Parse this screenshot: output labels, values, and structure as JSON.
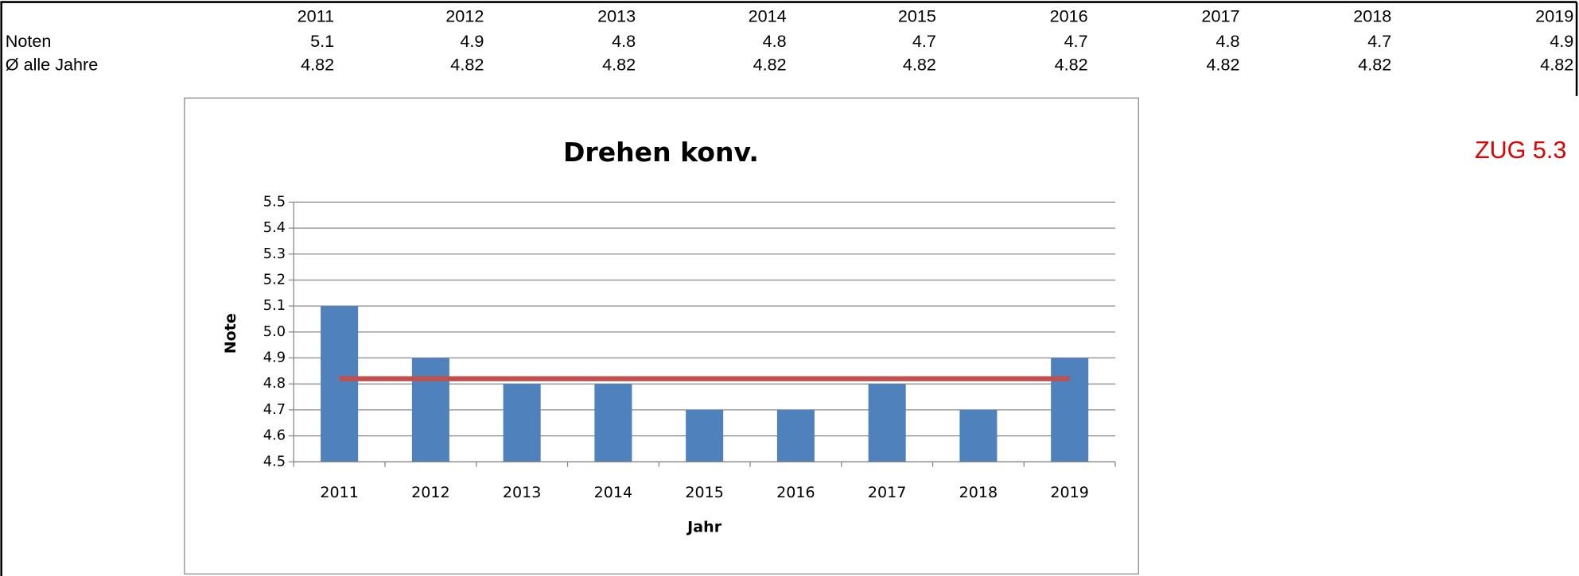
{
  "table": {
    "header": [
      "2011",
      "2012",
      "2013",
      "2014",
      "2015",
      "2016",
      "2017",
      "2018",
      "2019"
    ],
    "rows": [
      [
        "Noten",
        5.1,
        4.9,
        4.8,
        4.8,
        4.7,
        4.7,
        4.8,
        4.7,
        4.9
      ],
      [
        "Ø alle Jahre",
        4.82,
        4.82,
        4.82,
        4.82,
        4.82,
        4.82,
        4.82,
        4.82,
        4.82
      ]
    ]
  },
  "annotation": "ZUG 5.3",
  "chart_data": {
    "type": "bar",
    "title": "Drehen konv.",
    "x_label": "Jahr",
    "y_label": "Note",
    "categories": [
      "2011",
      "2012",
      "2013",
      "2014",
      "2015",
      "2016",
      "2017",
      "2018",
      "2019"
    ],
    "series": [
      {
        "type": "bar",
        "color": "#4f81bd",
        "values": [
          5.1,
          4.9,
          4.8,
          4.8,
          4.7,
          4.7,
          4.8,
          4.7,
          4.9
        ]
      },
      {
        "type": "line",
        "color": "#c0504d",
        "values": [
          4.82,
          4.82,
          4.82,
          4.82,
          4.82,
          4.82,
          4.82,
          4.82,
          4.82
        ]
      }
    ],
    "ylim": [
      4.5,
      5.5
    ],
    "yticks": [
      4.5,
      4.6,
      4.7,
      4.8,
      4.9,
      {
        "value": 5,
        "label": "5.0"
      },
      5.1,
      5.2,
      5.3,
      5.4,
      5.5
    ],
    "grid": true
  }
}
